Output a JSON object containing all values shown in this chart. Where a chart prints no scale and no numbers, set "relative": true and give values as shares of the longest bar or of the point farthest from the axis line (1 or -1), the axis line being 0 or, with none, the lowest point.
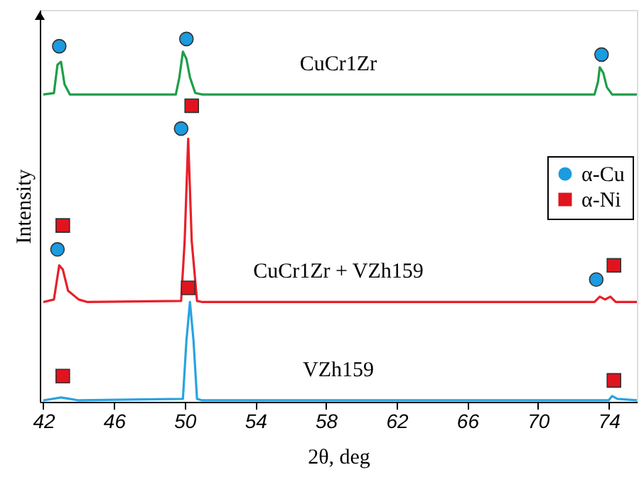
{
  "chart_data": {
    "type": "line",
    "xlabel": "2θ, deg",
    "ylabel": "Intensity",
    "relative": true,
    "xlim": [
      41.8,
      75.6
    ],
    "xticks": [
      42,
      46,
      50,
      54,
      58,
      62,
      66,
      70,
      74
    ],
    "grid": false,
    "legend": "right",
    "line_style": "solid",
    "series": [
      {
        "name": "CuCr1Zr",
        "color": "#1f9e48",
        "x": [
          42,
          42.6,
          42.8,
          43.0,
          43.2,
          43.5,
          49.5,
          49.7,
          49.9,
          50.1,
          50.3,
          50.6,
          51,
          73.2,
          73.4,
          73.5,
          73.7,
          73.9,
          74.2,
          75.6
        ],
        "values": [
          0.847,
          0.851,
          0.929,
          0.937,
          0.875,
          0.847,
          0.847,
          0.894,
          0.965,
          0.945,
          0.894,
          0.851,
          0.847,
          0.847,
          0.882,
          0.922,
          0.906,
          0.867,
          0.847,
          0.847
        ]
      },
      {
        "name": "CuCr1Zr + VZh159",
        "color": "#e8202a",
        "x": [
          42,
          42.6,
          42.9,
          43.1,
          43.4,
          44,
          44.5,
          49.8,
          50.0,
          50.2,
          50.4,
          50.7,
          51,
          73.2,
          73.5,
          73.8,
          74.1,
          74.4,
          75.6
        ],
        "values": [
          0.275,
          0.282,
          0.376,
          0.365,
          0.306,
          0.282,
          0.275,
          0.278,
          0.443,
          0.725,
          0.443,
          0.278,
          0.275,
          0.275,
          0.29,
          0.282,
          0.29,
          0.275,
          0.275
        ]
      },
      {
        "name": "VZh159",
        "color": "#2aa3e0",
        "x": [
          42,
          43,
          43.5,
          44,
          49.9,
          50.1,
          50.3,
          50.5,
          50.7,
          51,
          74,
          74.2,
          74.5,
          75.6
        ],
        "values": [
          0.004,
          0.012,
          0.008,
          0.004,
          0.008,
          0.169,
          0.275,
          0.169,
          0.008,
          0.004,
          0.004,
          0.016,
          0.008,
          0.004
        ]
      },
      {
        "type": "scatter",
        "name": "α-Cu",
        "color": "#1b9be0",
        "marker": "circle",
        "x": [
          42.9,
          50.1,
          73.6,
          42.8,
          49.8,
          73.3
        ],
        "values": [
          0.98,
          1.0,
          0.957,
          0.42,
          0.753,
          0.337
        ]
      },
      {
        "type": "scatter",
        "name": "α-Ni",
        "color": "#e0141e",
        "marker": "square",
        "x": [
          50.4,
          43.1,
          50.2,
          74.3,
          43.1,
          74.3
        ],
        "values": [
          0.816,
          0.486,
          0.314,
          0.376,
          0.071,
          0.059
        ]
      }
    ]
  }
}
